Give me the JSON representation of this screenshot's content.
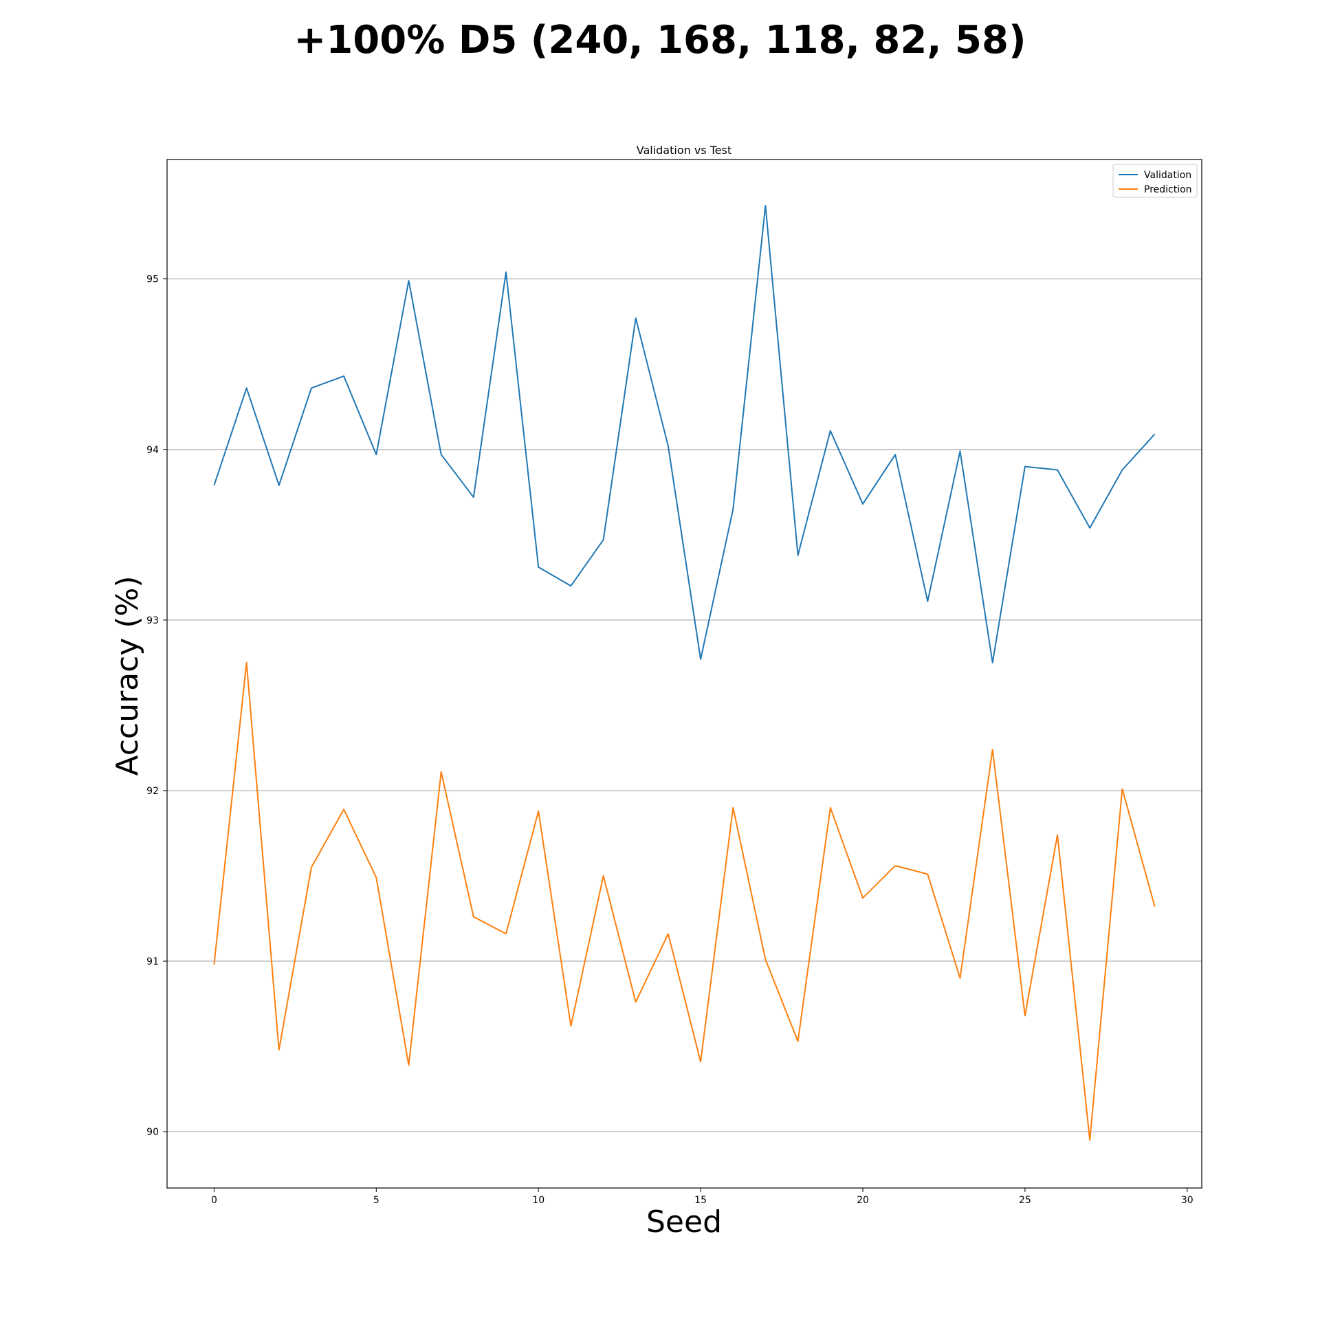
{
  "suptitle": "+100% D5 (240, 168, 118, 82, 58)",
  "chart_data": {
    "type": "line",
    "title": "Validation vs Test",
    "xlabel": "Seed",
    "ylabel": "Accuracy (%)",
    "xlim": [
      -1.45,
      30.45
    ],
    "ylim": [
      89.67,
      95.7
    ],
    "xticks": [
      0,
      5,
      10,
      15,
      20,
      25,
      30
    ],
    "yticks": [
      90,
      91,
      92,
      93,
      94,
      95
    ],
    "grid": "y",
    "legend_position": "top-right",
    "x": [
      0,
      1,
      2,
      3,
      4,
      5,
      6,
      7,
      8,
      9,
      10,
      11,
      12,
      13,
      14,
      15,
      16,
      17,
      18,
      19,
      20,
      21,
      22,
      23,
      24,
      25,
      26,
      27,
      28,
      29
    ],
    "series": [
      {
        "name": "Validation",
        "color": "#1f77b4",
        "values": [
          93.79,
          94.36,
          93.79,
          94.36,
          94.43,
          93.97,
          94.99,
          93.97,
          93.72,
          95.04,
          93.31,
          93.2,
          93.47,
          94.77,
          94.02,
          92.77,
          93.65,
          95.43,
          93.38,
          94.11,
          93.68,
          93.97,
          93.11,
          93.99,
          92.75,
          93.9,
          93.88,
          93.54,
          93.88,
          94.09
        ]
      },
      {
        "name": "Prediction",
        "color": "#ff7f0e",
        "values": [
          90.98,
          92.75,
          90.48,
          91.55,
          91.89,
          91.49,
          90.39,
          92.11,
          91.26,
          91.16,
          91.88,
          90.62,
          91.5,
          90.76,
          91.16,
          90.41,
          91.9,
          91.01,
          90.53,
          91.9,
          91.37,
          91.56,
          91.51,
          90.9,
          92.24,
          90.68,
          91.74,
          89.95,
          92.01,
          91.32
        ]
      }
    ]
  }
}
